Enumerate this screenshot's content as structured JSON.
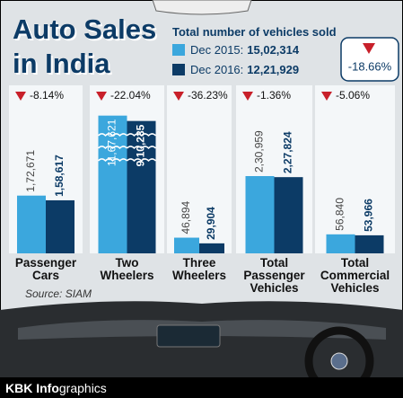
{
  "chart_data": {
    "type": "bar",
    "title": "Auto Sales in India",
    "subtitle": "Total number of vehicles sold",
    "categories": [
      "Passenger Cars",
      "Two Wheelers",
      "Three Wheelers",
      "Total Passenger Vehicles",
      "Total Commercial Vehicles"
    ],
    "series": [
      {
        "name": "Dec 2015:",
        "color": "#3ba7dd",
        "total": 1502314,
        "total_label": "15,02,314",
        "values": [
          172671,
          1167621,
          46894,
          230959,
          56840
        ],
        "value_labels": [
          "1,72,671",
          "11,67,621",
          "46,894",
          "2,30,959",
          "56,840"
        ]
      },
      {
        "name": "Dec 2016:",
        "color": "#0c3b66",
        "total": 1221929,
        "total_label": "12,21,929",
        "values": [
          158617,
          910235,
          29904,
          227824,
          53966
        ],
        "value_labels": [
          "1,58,617",
          "9,10,235",
          "29,904",
          "2,27,824",
          "53,966"
        ]
      }
    ],
    "changes": [
      -8.14,
      -22.04,
      -36.23,
      -1.36,
      -5.06
    ],
    "change_labels": [
      "-8.14%",
      "-22.04%",
      "-36.23%",
      "-1.36%",
      "-5.06%"
    ],
    "total_change": -18.66,
    "total_change_label": "-18.66%",
    "axis_break": [
      250000,
      900000
    ],
    "source": "Source: SIAM",
    "footer": {
      "bold": "KBK Info",
      "light": "graphics"
    }
  }
}
